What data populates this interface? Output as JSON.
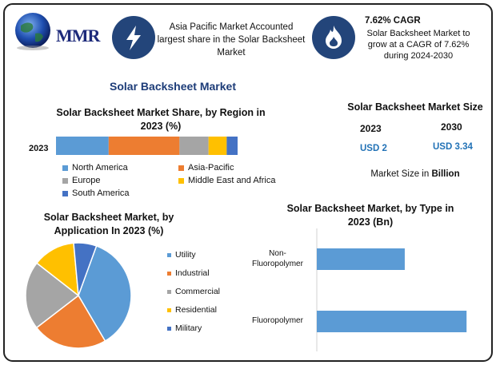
{
  "brand": {
    "logo_text": "MMR"
  },
  "info_left": {
    "text": "Asia Pacific Market Accounted largest share in the Solar Backsheet Market",
    "icon": "lightning-icon"
  },
  "info_right": {
    "title": "7.62% CAGR",
    "text": "Solar Backsheet Market to grow at a CAGR of 7.62% during 2024-2030",
    "icon": "flame-icon"
  },
  "colors": {
    "blue": "#5b9bd5",
    "orange": "#ed7d31",
    "gray": "#a5a5a5",
    "yellow": "#ffc000",
    "darkblue": "#4472c4",
    "navy": "#23457a",
    "accent": "#2272b6"
  },
  "main_title": "Solar Backsheet Market",
  "market_size": {
    "title": "Solar Backsheet Market Size",
    "year1": "2023",
    "year2": "2030",
    "value1": "USD 2",
    "value2": "USD 3.34",
    "footnote_prefix": "Market Size in ",
    "footnote_unit": "Billion"
  },
  "chart_data": [
    {
      "type": "bar",
      "orientation": "horizontal-stacked",
      "title": "Solar Backsheet Market Share, by Region in 2023 (%)",
      "categories": [
        "2023"
      ],
      "series": [
        {
          "name": "North America",
          "values": [
            29
          ]
        },
        {
          "name": "Asia-Pacific",
          "values": [
            39
          ]
        },
        {
          "name": "Europe",
          "values": [
            16
          ]
        },
        {
          "name": "Middle East and Africa",
          "values": [
            10
          ]
        },
        {
          "name": "South America",
          "values": [
            6
          ]
        }
      ],
      "legend": "bottom"
    },
    {
      "type": "pie",
      "title": "Solar Backsheet Market, by Application In 2023 (%)",
      "labels": [
        "Utility",
        "Industrial",
        "Commercial",
        "Residential",
        "Military"
      ],
      "values": [
        36,
        23,
        21,
        13,
        7
      ],
      "legend": "right"
    },
    {
      "type": "bar",
      "orientation": "horizontal",
      "title": "Solar Backsheet Market, by Type in 2023 (Bn)",
      "categories": [
        "Non-Fluoropolymer",
        "Fluoropolymer"
      ],
      "category_labels": [
        [
          "Non-",
          "Fluoropolymer"
        ],
        [
          "Fluoropolymer"
        ]
      ],
      "values": [
        0.74,
        1.26
      ],
      "xlim": [
        0,
        1.4
      ]
    }
  ]
}
